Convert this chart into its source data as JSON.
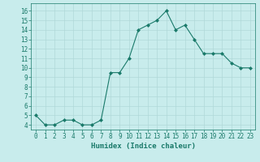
{
  "x": [
    0,
    1,
    2,
    3,
    4,
    5,
    6,
    7,
    8,
    9,
    10,
    11,
    12,
    13,
    14,
    15,
    16,
    17,
    18,
    19,
    20,
    21,
    22,
    23
  ],
  "y": [
    5,
    4,
    4,
    4.5,
    4.5,
    4,
    4,
    4.5,
    9.5,
    9.5,
    11,
    14,
    14.5,
    15,
    16,
    14,
    14.5,
    13,
    11.5,
    11.5,
    11.5,
    10.5,
    10,
    10
  ],
  "line_color": "#1a7a6a",
  "marker": "D",
  "marker_size": 2.0,
  "background_color": "#c8ecec",
  "grid_color": "#b0d8d8",
  "xlabel": "Humidex (Indice chaleur)",
  "xlim": [
    -0.5,
    23.5
  ],
  "ylim": [
    3.5,
    16.8
  ],
  "yticks": [
    4,
    5,
    6,
    7,
    8,
    9,
    10,
    11,
    12,
    13,
    14,
    15,
    16
  ],
  "xticks": [
    0,
    1,
    2,
    3,
    4,
    5,
    6,
    7,
    8,
    9,
    10,
    11,
    12,
    13,
    14,
    15,
    16,
    17,
    18,
    19,
    20,
    21,
    22,
    23
  ],
  "tick_fontsize": 5.5,
  "xlabel_fontsize": 6.5,
  "label_color": "#1a7a6a",
  "linewidth": 0.8
}
